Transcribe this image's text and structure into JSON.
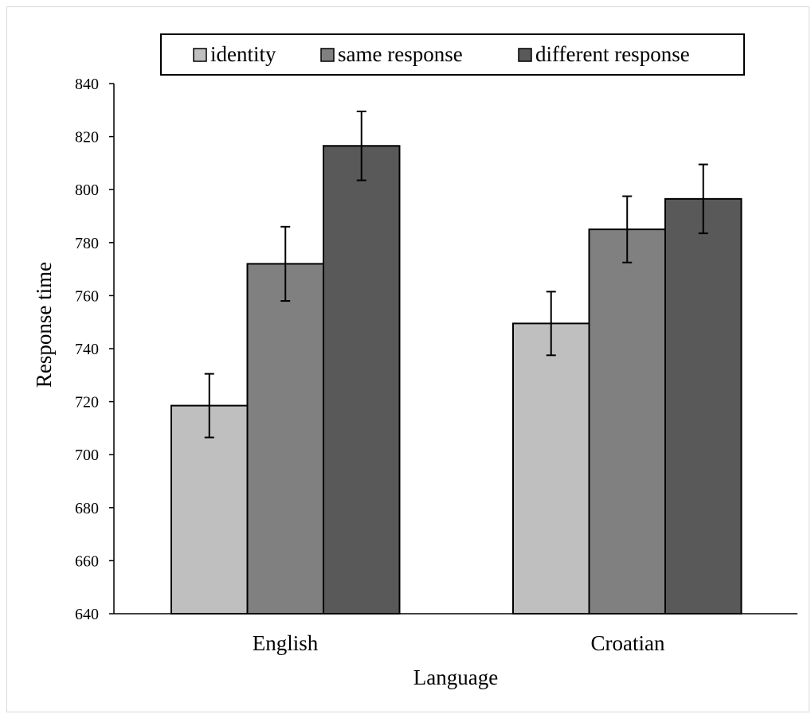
{
  "chart_data": {
    "type": "bar",
    "title": "",
    "xlabel": "Language",
    "ylabel": "Response time",
    "categories": [
      "English",
      "Croatian"
    ],
    "series": [
      {
        "name": "identity",
        "values": [
          718.5,
          749.5
        ],
        "errors": [
          12,
          12
        ],
        "color": "#bfbfbf"
      },
      {
        "name": "same response",
        "values": [
          772,
          785
        ],
        "errors": [
          14,
          12.5
        ],
        "color": "#808080"
      },
      {
        "name": "different response",
        "values": [
          816.5,
          796.5
        ],
        "errors": [
          13,
          13
        ],
        "color": "#595959"
      }
    ],
    "ylim": [
      640,
      840
    ],
    "yticks": [
      "640",
      "660",
      "680",
      "700",
      "720",
      "740",
      "760",
      "780",
      "800",
      "820",
      "840"
    ],
    "grid": false,
    "legend_position": "top",
    "error_bars": true
  }
}
